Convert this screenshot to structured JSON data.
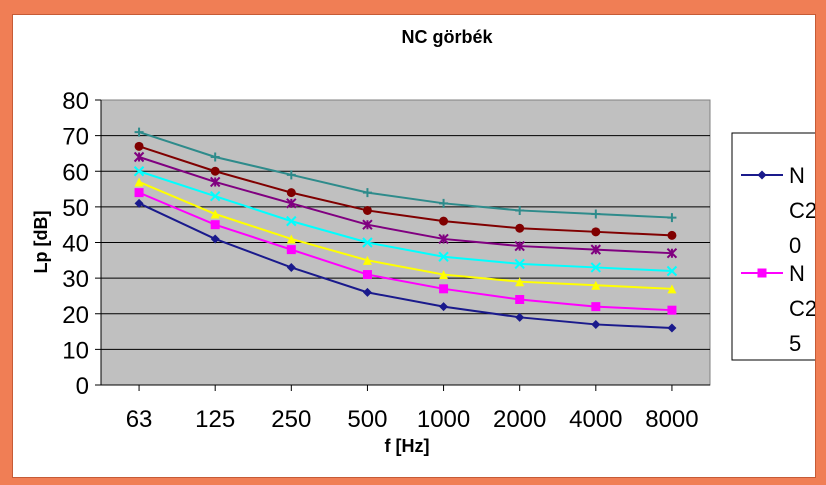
{
  "chart_data": {
    "type": "line",
    "title": "NC görbék",
    "xlabel": "f [Hz]",
    "ylabel": "Lp [dB]",
    "categories": [
      "63",
      "125",
      "250",
      "500",
      "1000",
      "2000",
      "4000",
      "8000"
    ],
    "ylim": [
      0,
      80
    ],
    "yticks": [
      0,
      10,
      20,
      30,
      40,
      50,
      60,
      70,
      80
    ],
    "grid": true,
    "legend_position": "right",
    "series": [
      {
        "name": "NC20",
        "legend_lines": [
          "N",
          "C2",
          "0"
        ],
        "color": "#1a1a8c",
        "marker": "diamond",
        "values": [
          51,
          41,
          33,
          26,
          22,
          19,
          17,
          16
        ]
      },
      {
        "name": "NC25",
        "legend_lines": [
          "N",
          "C2",
          "5"
        ],
        "color": "#ff00ff",
        "marker": "square",
        "values": [
          54,
          45,
          38,
          31,
          27,
          24,
          22,
          21
        ]
      },
      {
        "color": "#ffff00",
        "marker": "triangle",
        "values": [
          57,
          48,
          41,
          35,
          31,
          29,
          28,
          27
        ]
      },
      {
        "color": "#00ffff",
        "marker": "x",
        "values": [
          60,
          53,
          46,
          40,
          36,
          34,
          33,
          32
        ]
      },
      {
        "color": "#800080",
        "marker": "star",
        "values": [
          64,
          57,
          51,
          45,
          41,
          39,
          38,
          37
        ]
      },
      {
        "color": "#800000",
        "marker": "circle",
        "values": [
          67,
          60,
          54,
          49,
          46,
          44,
          43,
          42
        ]
      },
      {
        "color": "#2e8b8b",
        "marker": "plus",
        "values": [
          71,
          64,
          59,
          54,
          51,
          49,
          48,
          47
        ]
      }
    ]
  }
}
